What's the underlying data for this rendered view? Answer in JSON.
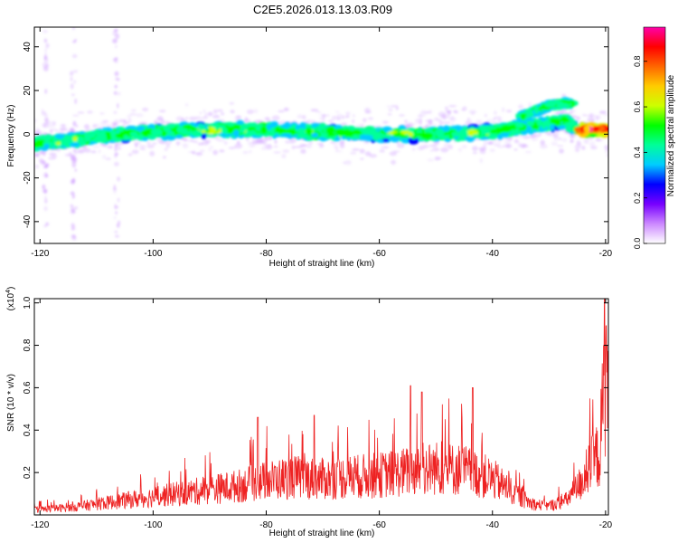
{
  "title": "C2E5.2026.013.13.03.R09",
  "chart_data": [
    {
      "type": "heatmap",
      "xlabel": "Height of straight line (km)",
      "ylabel": "Frequency (Hz)",
      "xlim": [
        -121,
        -19.5
      ],
      "ylim": [
        -50,
        49
      ],
      "xticks": [
        -120,
        -100,
        -80,
        -60,
        -40,
        -20
      ],
      "yticks": [
        -40,
        -20,
        0,
        20,
        40
      ],
      "colorbar": {
        "label": "Normalized spectral amplitude",
        "range": [
          0,
          0.95
        ],
        "ticks": [
          0.0,
          0.2,
          0.4,
          0.6,
          0.8
        ],
        "colors": [
          "#ffffff",
          "#cc88ff",
          "#7700ff",
          "#0000ff",
          "#00ccff",
          "#00ff99",
          "#00ff00",
          "#ccff00",
          "#ffcc00",
          "#ff6600",
          "#ff0000",
          "#ff00aa"
        ]
      },
      "band": {
        "x": [
          -121,
          -115,
          -110,
          -105,
          -100,
          -90,
          -80,
          -70,
          -60,
          -50,
          -40,
          -35,
          -30,
          -27,
          -25,
          -22,
          -20
        ],
        "center_freq": [
          -4,
          -3,
          -1,
          0,
          1,
          2,
          2,
          1,
          0,
          0,
          1,
          3,
          5,
          6,
          2,
          2,
          2
        ],
        "upper_branch": {
          "x": [
            -35,
            -32,
            -30,
            -28,
            -26
          ],
          "center_freq": [
            8,
            11,
            13,
            14,
            14
          ]
        }
      }
    },
    {
      "type": "line",
      "xlabel": "Height of straight line (km)",
      "ylabel": "SNR (10 * v/v)",
      "y_multiplier": "(x10",
      "y_multiplier_exp": "4",
      "xlim": [
        -121,
        -19.5
      ],
      "ylim": [
        0,
        1.02
      ],
      "xticks": [
        -120,
        -100,
        -80,
        -60,
        -40,
        -20
      ],
      "yticks": [
        0.2,
        0.4,
        0.6,
        0.8,
        1.0
      ],
      "series": [
        {
          "color": "#ee2222",
          "envelope": {
            "x": [
              -121,
              -115,
              -110,
              -105,
              -100,
              -95,
              -90,
              -85,
              -80,
              -75,
              -70,
              -65,
              -60,
              -55,
              -50,
              -45,
              -40,
              -36,
              -33,
              -30,
              -27,
              -25,
              -23,
              -21,
              -20.5,
              -20
            ],
            "y": [
              0.03,
              0.04,
              0.06,
              0.08,
              0.1,
              0.12,
              0.14,
              0.16,
              0.19,
              0.21,
              0.2,
              0.21,
              0.22,
              0.24,
              0.26,
              0.25,
              0.2,
              0.12,
              0.06,
              0.05,
              0.08,
              0.15,
              0.25,
              0.35,
              0.6,
              0.8
            ]
          },
          "peaks": [
            {
              "x": -81.5,
              "y": 0.46
            },
            {
              "x": -71.5,
              "y": 0.47
            },
            {
              "x": -54.5,
              "y": 0.61
            },
            {
              "x": -52.5,
              "y": 0.58
            },
            {
              "x": -43.5,
              "y": 0.6
            },
            {
              "x": -20.2,
              "y": 1.02
            }
          ]
        }
      ]
    }
  ]
}
